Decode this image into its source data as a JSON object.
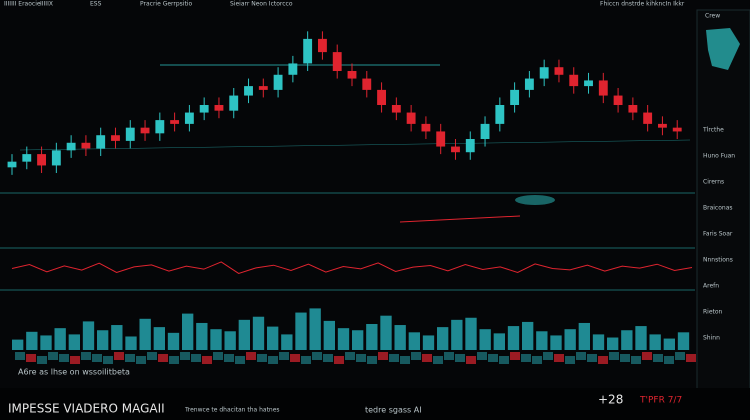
{
  "header": {
    "left": "IIIIIII Eraocie",
    "tabs": [
      "IIIIIX",
      "ESS",
      "Pracrie Gerrpsitio",
      "Sieiarr Neon Ictorcco"
    ],
    "right": "Fhiccn dnstrde kihkncIn Ikkr"
  },
  "chart_data": [
    {
      "type": "candlestick",
      "name": "price",
      "up_color": "#2ec4c4",
      "down_color": "#e0242f",
      "ylim": [
        105,
        195
      ],
      "open": [
        117,
        120,
        124,
        118,
        126,
        130,
        127,
        134,
        131,
        138,
        135,
        142,
        140,
        146,
        150,
        147,
        155,
        160,
        158,
        166,
        172,
        185,
        178,
        168,
        164,
        158,
        150,
        146,
        140,
        136,
        128,
        125,
        132,
        140,
        150,
        158,
        164,
        170,
        166,
        160,
        163,
        155,
        150,
        146,
        140,
        138
      ],
      "high": [
        124,
        128,
        128,
        130,
        134,
        134,
        138,
        138,
        142,
        142,
        146,
        146,
        150,
        154,
        154,
        159,
        164,
        164,
        170,
        176,
        189,
        189,
        182,
        172,
        168,
        162,
        154,
        150,
        144,
        140,
        132,
        136,
        144,
        154,
        162,
        168,
        174,
        174,
        170,
        167,
        167,
        159,
        154,
        150,
        144,
        142
      ],
      "low": [
        113,
        116,
        114,
        114,
        122,
        123,
        123,
        127,
        127,
        131,
        131,
        136,
        136,
        142,
        143,
        143,
        151,
        154,
        154,
        162,
        168,
        174,
        164,
        160,
        154,
        146,
        142,
        136,
        132,
        124,
        121,
        121,
        128,
        136,
        146,
        154,
        160,
        162,
        156,
        156,
        151,
        146,
        142,
        136,
        134,
        132
      ],
      "close": [
        120,
        124,
        118,
        126,
        130,
        127,
        134,
        131,
        138,
        135,
        142,
        140,
        146,
        150,
        147,
        155,
        160,
        158,
        166,
        172,
        185,
        178,
        168,
        164,
        158,
        150,
        146,
        140,
        136,
        128,
        125,
        132,
        140,
        150,
        158,
        164,
        170,
        166,
        160,
        163,
        155,
        150,
        146,
        140,
        138,
        136
      ]
    },
    {
      "type": "line",
      "name": "oscillator",
      "color": "#e0242f",
      "ylim": [
        0,
        100
      ],
      "values": [
        50,
        62,
        40,
        58,
        45,
        66,
        38,
        55,
        61,
        42,
        57,
        48,
        70,
        35,
        52,
        60,
        44,
        63,
        39,
        56,
        49,
        67,
        41,
        54,
        59,
        43,
        62,
        47,
        55,
        38,
        64,
        50,
        46,
        60,
        42,
        57,
        51,
        63,
        44,
        53
      ]
    },
    {
      "type": "bar",
      "name": "volume",
      "color": "#1f8a93",
      "ylim": [
        0,
        100
      ],
      "values": [
        20,
        35,
        28,
        42,
        30,
        55,
        38,
        48,
        26,
        60,
        44,
        33,
        70,
        52,
        40,
        36,
        58,
        64,
        45,
        30,
        72,
        80,
        56,
        42,
        38,
        50,
        66,
        48,
        34,
        28,
        44,
        58,
        62,
        40,
        32,
        46,
        54,
        36,
        28,
        40,
        52,
        30,
        24,
        38,
        46,
        30,
        22,
        34
      ]
    }
  ],
  "sidebar": {
    "title": "Crew",
    "rows": [
      "Tlrcthe",
      "Huno Fuan",
      "Cirerns",
      "Braiconas",
      "Faris Soar",
      "Nnnstions",
      "Arefn",
      "Rieton",
      "Shinn"
    ]
  },
  "footer": {
    "brand": "IMPESSE VIADERO MAGAII",
    "caption": "A6re as lhse on wssoiIitbeta",
    "mid": "Trenwce te dhacitan tha hatnes",
    "tag": "tedre sgass AI",
    "change": "+28",
    "quote": "T'PFR 7/7"
  }
}
